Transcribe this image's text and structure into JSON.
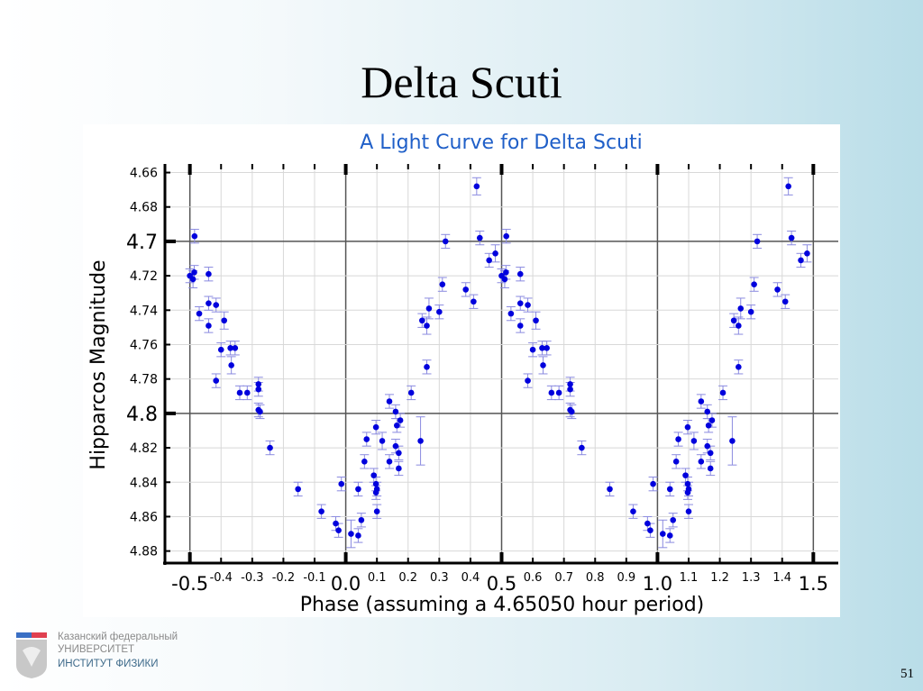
{
  "slide": {
    "title": "Delta Scuti",
    "page_number": "51",
    "logo": {
      "line1": "Казанский федеральный",
      "line2": "УНИВЕРСИТЕТ",
      "line3": "ИНСТИТУТ ФИЗИКИ"
    }
  },
  "chart_data": {
    "type": "scatter",
    "title": "A Light Curve for Delta Scuti",
    "xlabel": "Phase (assuming a 4.65050 hour period)",
    "ylabel": "Hipparcos Magnitude",
    "xlim": [
      -0.58,
      1.58
    ],
    "ylim": [
      4.655,
      4.887
    ],
    "y_inverted": true,
    "grid": true,
    "error_bars": true,
    "marker_color": "#0000dd",
    "errorbar_color": "#8a8ae0",
    "x_ticks_major": [
      "-0.5",
      "0.0",
      "0.5",
      "1.0",
      "1.5"
    ],
    "x_ticks_minor": [
      "-0.4",
      "-0.3",
      "-0.2",
      "-0.1",
      "0.1",
      "0.2",
      "0.3",
      "0.4",
      "0.6",
      "0.7",
      "0.8",
      "0.9",
      "1.1",
      "1.2",
      "1.3",
      "1.4"
    ],
    "y_ticks": [
      "4.66",
      "4.68",
      "4.7",
      "4.72",
      "4.74",
      "4.76",
      "4.78",
      "4.8",
      "4.82",
      "4.84",
      "4.86",
      "4.88"
    ],
    "y_ticks_major": [
      "4.7",
      "4.8"
    ],
    "phase_repeat_offset": 1,
    "points": [
      [
        -0.5,
        4.72,
        0.004
      ],
      [
        -0.49,
        4.722,
        0.005
      ],
      [
        -0.486,
        4.718,
        0.004
      ],
      [
        -0.485,
        4.697,
        0.004
      ],
      [
        -0.47,
        4.742,
        0.004
      ],
      [
        -0.44,
        4.719,
        0.004
      ],
      [
        -0.44,
        4.736,
        0.004
      ],
      [
        -0.44,
        4.749,
        0.004
      ],
      [
        -0.416,
        4.737,
        0.004
      ],
      [
        -0.416,
        4.781,
        0.004
      ],
      [
        -0.4,
        4.763,
        0.004
      ],
      [
        -0.39,
        4.746,
        0.005
      ],
      [
        -0.37,
        4.762,
        0.004
      ],
      [
        -0.367,
        4.772,
        0.005
      ],
      [
        -0.355,
        4.762,
        0.004
      ],
      [
        -0.34,
        4.788,
        0.004
      ],
      [
        -0.316,
        4.788,
        0.004
      ],
      [
        -0.28,
        4.783,
        0.004
      ],
      [
        -0.28,
        4.786,
        0.004
      ],
      [
        -0.28,
        4.798,
        0.004
      ],
      [
        -0.275,
        4.799,
        0.004
      ],
      [
        -0.243,
        4.82,
        0.004
      ],
      [
        -0.153,
        4.844,
        0.004
      ],
      [
        -0.078,
        4.857,
        0.004
      ],
      [
        -0.014,
        4.841,
        0.004
      ],
      [
        -0.032,
        4.864,
        0.004
      ],
      [
        -0.023,
        4.868,
        0.004
      ],
      [
        0.017,
        4.87,
        0.008
      ],
      [
        0.04,
        4.871,
        0.004
      ],
      [
        0.04,
        4.844,
        0.004
      ],
      [
        0.05,
        4.862,
        0.004
      ],
      [
        0.06,
        4.828,
        0.004
      ],
      [
        0.067,
        4.815,
        0.004
      ],
      [
        0.09,
        4.836,
        0.004
      ],
      [
        0.097,
        4.841,
        0.004
      ],
      [
        0.097,
        4.846,
        0.004
      ],
      [
        0.1,
        4.844,
        0.004
      ],
      [
        0.1,
        4.857,
        0.004
      ],
      [
        0.097,
        4.808,
        0.004
      ],
      [
        0.117,
        4.816,
        0.005
      ],
      [
        0.14,
        4.793,
        0.004
      ],
      [
        0.14,
        4.828,
        0.004
      ],
      [
        0.16,
        4.799,
        0.004
      ],
      [
        0.164,
        4.807,
        0.004
      ],
      [
        0.16,
        4.819,
        0.004
      ],
      [
        0.17,
        4.823,
        0.004
      ],
      [
        0.17,
        4.832,
        0.004
      ],
      [
        0.175,
        4.804,
        0.004
      ],
      [
        0.21,
        4.788,
        0.004
      ],
      [
        0.24,
        4.816,
        0.014
      ],
      [
        0.245,
        4.746,
        0.004
      ],
      [
        0.26,
        4.773,
        0.004
      ],
      [
        0.26,
        4.749,
        0.005
      ],
      [
        0.267,
        4.739,
        0.006
      ],
      [
        0.3,
        4.741,
        0.004
      ],
      [
        0.31,
        4.725,
        0.004
      ],
      [
        0.32,
        4.7,
        0.004
      ],
      [
        0.385,
        4.728,
        0.004
      ],
      [
        0.41,
        4.735,
        0.004
      ],
      [
        0.42,
        4.668,
        0.005
      ],
      [
        0.43,
        4.698,
        0.004
      ],
      [
        0.46,
        4.711,
        0.004
      ],
      [
        0.48,
        4.707,
        0.005
      ]
    ]
  }
}
